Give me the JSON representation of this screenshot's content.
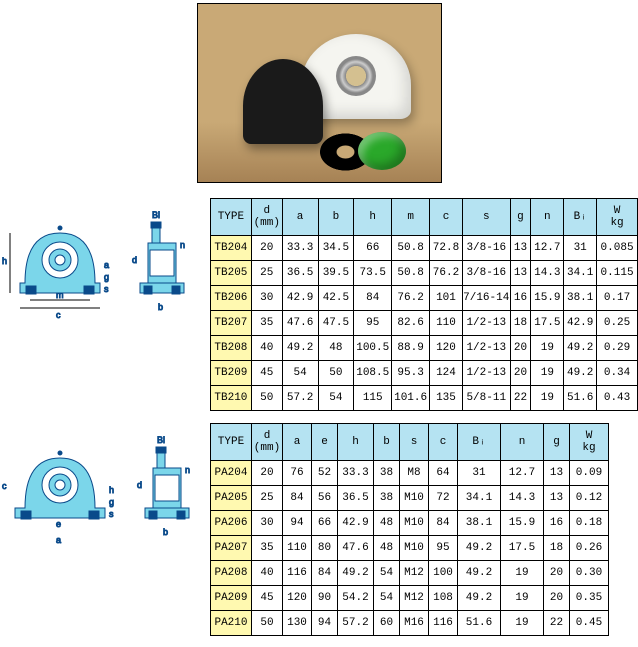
{
  "colors": {
    "header_bg": "#b5e3f2",
    "type_bg": "#fff9b0",
    "border": "#000000",
    "diagram_fill": "#7bd6ea",
    "diagram_stroke": "#0a4a8a"
  },
  "table1": {
    "headers": [
      "TYPE",
      "d\n(mm)",
      "a",
      "b",
      "h",
      "m",
      "c",
      "s",
      "g",
      "n",
      "Bᵢ",
      "W\nkg"
    ],
    "rows": [
      [
        "TB204",
        "20",
        "33.3",
        "34.5",
        "66",
        "50.8",
        "72.8",
        "3/8-16",
        "13",
        "12.7",
        "31",
        "0.085"
      ],
      [
        "TB205",
        "25",
        "36.5",
        "39.5",
        "73.5",
        "50.8",
        "76.2",
        "3/8-16",
        "13",
        "14.3",
        "34.1",
        "0.115"
      ],
      [
        "TB206",
        "30",
        "42.9",
        "42.5",
        "84",
        "76.2",
        "101",
        "7/16-14",
        "16",
        "15.9",
        "38.1",
        "0.17"
      ],
      [
        "TB207",
        "35",
        "47.6",
        "47.5",
        "95",
        "82.6",
        "110",
        "1/2-13",
        "18",
        "17.5",
        "42.9",
        "0.25"
      ],
      [
        "TB208",
        "40",
        "49.2",
        "48",
        "100.5",
        "88.9",
        "120",
        "1/2-13",
        "20",
        "19",
        "49.2",
        "0.29"
      ],
      [
        "TB209",
        "45",
        "54",
        "50",
        "108.5",
        "95.3",
        "124",
        "1/2-13",
        "20",
        "19",
        "49.2",
        "0.34"
      ],
      [
        "TB210",
        "50",
        "57.2",
        "54",
        "115",
        "101.6",
        "135",
        "5/8-11",
        "22",
        "19",
        "51.6",
        "0.43"
      ]
    ]
  },
  "table2": {
    "headers": [
      "TYPE",
      "d\n(mm)",
      "a",
      "e",
      "h",
      "b",
      "s",
      "c",
      "Bᵢ",
      "n",
      "g",
      "W\nkg"
    ],
    "rows": [
      [
        "PA204",
        "20",
        "76",
        "52",
        "33.3",
        "38",
        "M8",
        "64",
        "31",
        "12.7",
        "13",
        "0.09"
      ],
      [
        "PA205",
        "25",
        "84",
        "56",
        "36.5",
        "38",
        "M10",
        "72",
        "34.1",
        "14.3",
        "13",
        "0.12"
      ],
      [
        "PA206",
        "30",
        "94",
        "66",
        "42.9",
        "48",
        "M10",
        "84",
        "38.1",
        "15.9",
        "16",
        "0.18"
      ],
      [
        "PA207",
        "35",
        "110",
        "80",
        "47.6",
        "48",
        "M10",
        "95",
        "49.2",
        "17.5",
        "18",
        "0.26"
      ],
      [
        "PA208",
        "40",
        "116",
        "84",
        "49.2",
        "54",
        "M12",
        "100",
        "49.2",
        "19",
        "20",
        "0.30"
      ],
      [
        "PA209",
        "45",
        "120",
        "90",
        "54.2",
        "54",
        "M12",
        "108",
        "49.2",
        "19",
        "20",
        "0.35"
      ],
      [
        "PA210",
        "50",
        "130",
        "94",
        "57.2",
        "60",
        "M16",
        "116",
        "51.6",
        "19",
        "22",
        "0.45"
      ]
    ]
  },
  "diagram1_labels": {
    "h": "h",
    "a": "a",
    "g": "g",
    "s": "s",
    "m": "m",
    "c": "c",
    "Bi": "Bi",
    "n": "n",
    "d": "d",
    "b": "b"
  },
  "diagram2_labels": {
    "c": "c",
    "a": "a",
    "e": "e",
    "h": "h",
    "g": "g",
    "s": "s",
    "Bi": "Bi",
    "n": "n",
    "d": "d",
    "b": "b"
  }
}
